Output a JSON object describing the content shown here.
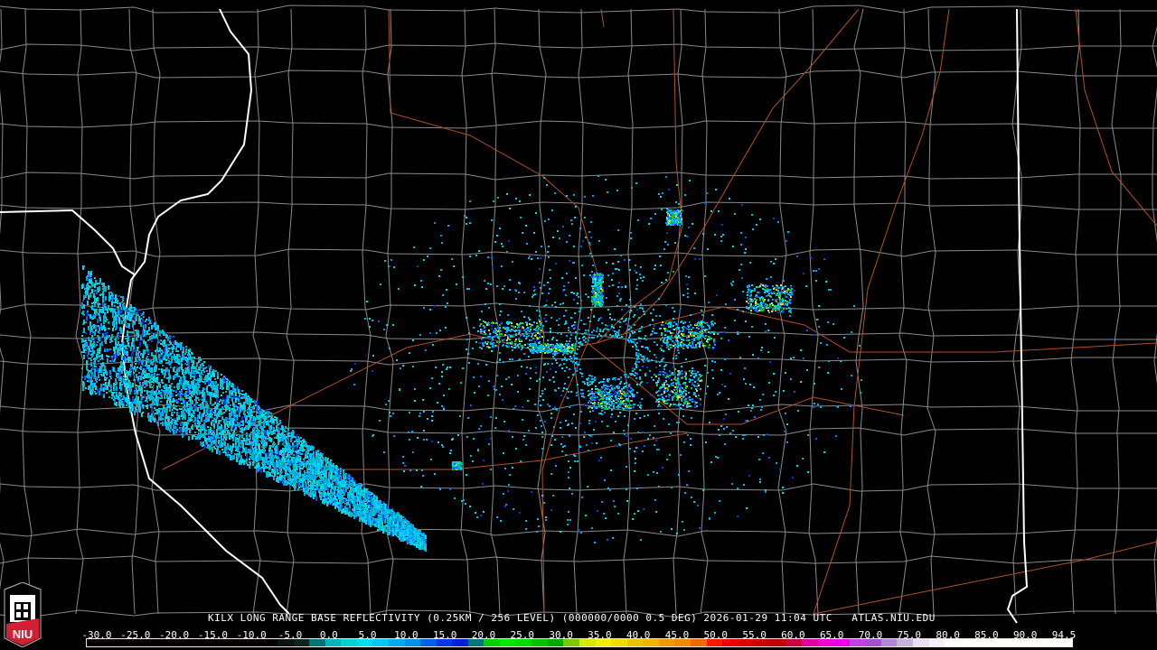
{
  "product": {
    "title": "KILX LONG RANGE BASE REFLECTIVITY (0.25KM / 256 LEVEL) (000000/0000 0.5 DEG) 2026-01-29 11:04 UTC   ATLAS.NIU.EDU",
    "radar_site": "KILX",
    "timestamp": "2026-01-29 11:04 UTC",
    "source": "ATLAS.NIU.EDU"
  },
  "logo": {
    "text": "NIU",
    "colors": {
      "red": "#d21f34",
      "white": "#ffffff"
    }
  },
  "legend": {
    "unit_scale_labels": [
      "-30.0",
      "-25.0",
      "-20.0",
      "-15.0",
      "-10.0",
      "-5.0",
      "0.0",
      "5.0",
      "10.0",
      "15.0",
      "20.0",
      "25.0",
      "30.0",
      "35.0",
      "40.0",
      "45.0",
      "50.0",
      "55.0",
      "60.0",
      "65.0",
      "70.0",
      "75.0",
      "80.0",
      "85.0",
      "90.0",
      "94.5"
    ],
    "colors": [
      "#000000",
      "#000000",
      "#000000",
      "#000000",
      "#000000",
      "#000000",
      "#000000",
      "#000000",
      "#000000",
      "#000000",
      "#000000",
      "#000000",
      "#0a1414",
      "#0f2222",
      "#007474",
      "#00b8b8",
      "#00d0d0",
      "#00dcec",
      "#00c8f0",
      "#00a8f0",
      "#0090ec",
      "#0060ec",
      "#0038e8",
      "#0020d8",
      "#007878",
      "#00d000",
      "#00e800",
      "#00dc00",
      "#00c000",
      "#00a800",
      "#7cc800",
      "#d4e800",
      "#f0f000",
      "#f0dc00",
      "#e8c400",
      "#f0b400",
      "#f09800",
      "#f08800",
      "#f06800",
      "#ff1800",
      "#f00000",
      "#dc0000",
      "#c80000",
      "#c00000",
      "#c80040",
      "#e000a0",
      "#f000d0",
      "#e800e8",
      "#c040e0",
      "#a050d0",
      "#b088d8",
      "#c8b0e0",
      "#e8e0f0",
      "#f4f0f8",
      "#ffffff",
      "#ffffff",
      "#ffffff",
      "#ffffff",
      "#ffffff",
      "#ffffff",
      "#ffffff",
      "#ffffff"
    ]
  },
  "map_colors": {
    "state": "#ffffff",
    "county": "#8a8a8a",
    "road": "#b4502a"
  }
}
